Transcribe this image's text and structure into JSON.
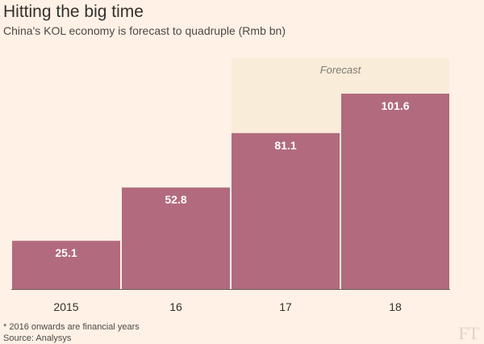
{
  "title": "Hitting the big time",
  "subtitle": "China's KOL economy is forecast to quadruple (Rmb bn)",
  "footnote": "* 2016 onwards are financial years",
  "source": "Source: Analysys",
  "logo": "FT",
  "colors": {
    "background": "#fff1e5",
    "bar": "#b26a7e",
    "forecast_band": "#f9ecd9",
    "axis": "#66605c",
    "text": "#33302e"
  },
  "chart_data": {
    "type": "bar",
    "categories": [
      "2015",
      "16",
      "17",
      "18"
    ],
    "values": [
      25.1,
      52.8,
      81.1,
      101.6
    ],
    "value_labels": [
      "25.1",
      "52.8",
      "81.1",
      "101.6"
    ],
    "ylim": [
      0,
      101.6
    ],
    "forecast": {
      "label": "Forecast",
      "from_category": "17",
      "to_category": "18"
    },
    "grid": false
  }
}
